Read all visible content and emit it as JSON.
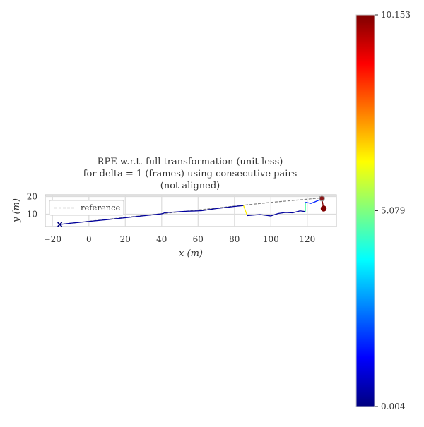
{
  "chart_data": [
    {
      "type": "line",
      "title": "RPE w.r.t. full transformation (unit-less)",
      "subtitle_lines": [
        "for delta = 1 (frames) using consecutive pairs",
        "(not aligned)"
      ],
      "xlabel": "x (m)",
      "ylabel": "y (m)",
      "xlim": [
        -24,
        136
      ],
      "ylim": [
        3,
        21
      ],
      "x_ticks": [
        -20,
        0,
        20,
        40,
        60,
        80,
        100,
        120
      ],
      "x_tick_labels": [
        "−20",
        "0",
        "20",
        "40",
        "60",
        "80",
        "100",
        "120"
      ],
      "y_ticks": [
        10,
        20
      ],
      "y_tick_labels": [
        "10",
        "20"
      ],
      "grid": true,
      "legend": {
        "placement": "upper-left",
        "entries": [
          "reference"
        ]
      },
      "reference": {
        "name": "reference",
        "color": "#808080",
        "style": "dashed",
        "points": [
          [
            -16,
            4.2
          ],
          [
            0,
            6.0
          ],
          [
            20,
            8.2
          ],
          [
            40,
            10.3
          ],
          [
            60,
            12.4
          ],
          [
            80,
            14.6
          ],
          [
            100,
            16.7
          ],
          [
            120,
            18.5
          ],
          [
            128,
            19.3
          ]
        ]
      },
      "estimate_segments": [
        {
          "points": [
            [
              -16,
              4.2
            ],
            [
              -10,
              4.9
            ],
            [
              0,
              5.9
            ],
            [
              10,
              6.9
            ],
            [
              20,
              8.0
            ],
            [
              30,
              9.1
            ],
            [
              40,
              10.2
            ],
            [
              42,
              10.9
            ],
            [
              48,
              11.3
            ],
            [
              54,
              11.7
            ],
            [
              58,
              11.8
            ],
            [
              62,
              12.0
            ],
            [
              66,
              12.6
            ],
            [
              70,
              13.2
            ],
            [
              76,
              13.9
            ],
            [
              80,
              14.4
            ],
            [
              85,
              14.9
            ]
          ],
          "error": 0.3
        },
        {
          "points": [
            [
              85,
              14.9
            ],
            [
              87,
              9.2
            ]
          ],
          "error": 6.5
        },
        {
          "points": [
            [
              87,
              9.2
            ],
            [
              94,
              9.8
            ],
            [
              100,
              9.0
            ],
            [
              104,
              10.4
            ],
            [
              108,
              11.0
            ],
            [
              112,
              10.8
            ],
            [
              116,
              11.9
            ],
            [
              119,
              11.5
            ]
          ],
          "error": 0.3
        },
        {
          "points": [
            [
              119,
              11.5
            ],
            [
              119,
              16.8
            ]
          ],
          "error": 4.7
        },
        {
          "points": [
            [
              119,
              16.8
            ],
            [
              122,
              16.1
            ],
            [
              124,
              16.9
            ],
            [
              126,
              17.8
            ],
            [
              128,
              19.0
            ]
          ],
          "error": 1.6
        },
        {
          "points": [
            [
              128,
              19.0
            ],
            [
              129,
              13.2
            ]
          ],
          "error": 10.153
        }
      ],
      "start_marker": {
        "point": [
          -16,
          4.2
        ],
        "symbol": "x",
        "color": "#000080"
      },
      "end_markers": [
        {
          "point": [
            128,
            19.0
          ],
          "color": "#8b1a1a",
          "style": "circle-with-gray-ring"
        },
        {
          "point": [
            129,
            13.2
          ],
          "color": "#800000",
          "style": "circle"
        }
      ]
    },
    {
      "type": "colorbar",
      "colormap": "jet",
      "min": 0.004,
      "max": 10.153,
      "ticks": [
        0.004,
        5.079,
        10.153
      ],
      "tick_labels": [
        "0.004",
        "5.079",
        "10.153"
      ],
      "colors": [
        "#00007f",
        "#0000ff",
        "#007fff",
        "#00ffff",
        "#7fff7f",
        "#ffff00",
        "#ff7f00",
        "#ff0000",
        "#7f0000"
      ]
    }
  ]
}
